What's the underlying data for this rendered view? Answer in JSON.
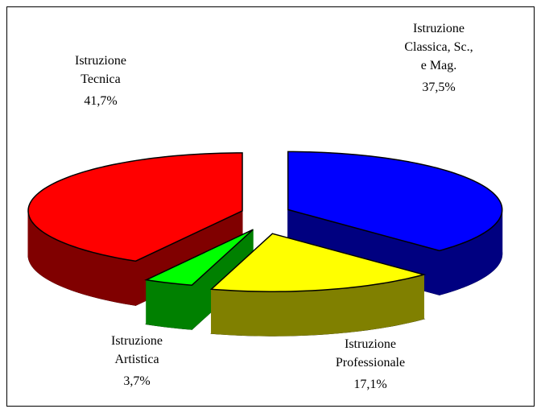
{
  "chart_data": {
    "type": "pie3d",
    "categories": [
      [
        "Istruzione",
        "Classica, Sc.,",
        "e Mag."
      ],
      [
        "Istruzione",
        "Professionale"
      ],
      [
        "Istruzione",
        "Artistica"
      ],
      [
        "Istruzione",
        "Tecnica"
      ]
    ],
    "values": [
      37.5,
      17.1,
      3.7,
      41.7
    ],
    "value_labels": [
      "37,5%",
      "17,1%",
      "3,7%",
      "41,7%"
    ],
    "colors": [
      "#0000ff",
      "#ffff00",
      "#00ff00",
      "#ff0000"
    ]
  }
}
